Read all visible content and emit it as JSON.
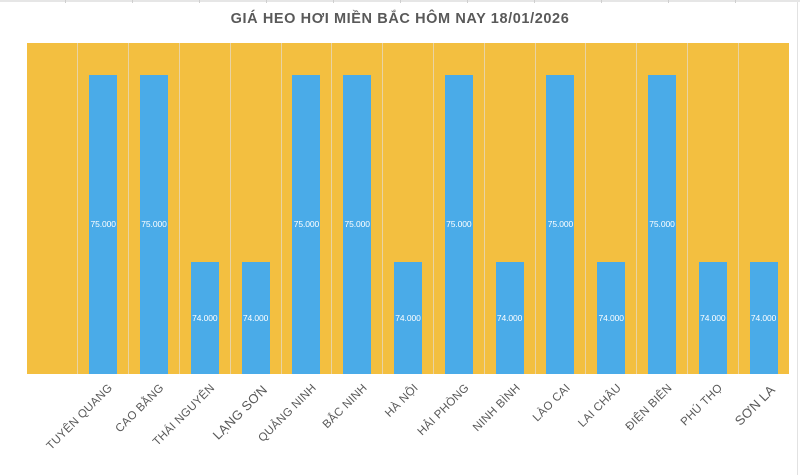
{
  "chart_data": {
    "type": "bar",
    "title": "GIÁ HEO HƠI MIỀN BẮC HÔM NAY 18/01/2026",
    "xlabel": "",
    "ylabel": "",
    "categories": [
      "",
      "TUYÊN QUANG",
      "CAO BẰNG",
      "THÁI NGUYÊN",
      "LẠNG SƠN",
      "QUẢNG NINH",
      "BẮC NINH",
      "HÀ NỘI",
      "HẢI PHÒNG",
      "NINH BÌNH",
      "LÀO CAI",
      "LAI CHÂU",
      "ĐIỆN BIÊN",
      "PHÚ THỌ",
      "SƠN LA"
    ],
    "values": [
      null,
      75000,
      75000,
      74000,
      74000,
      75000,
      75000,
      74000,
      75000,
      74000,
      75000,
      74000,
      75000,
      74000,
      74000
    ],
    "data_labels": [
      "",
      "75.000",
      "75.000",
      "74.000",
      "74.000",
      "75.000",
      "75.000",
      "74.000",
      "75.000",
      "74.000",
      "75.000",
      "74.000",
      "75.000",
      "74.000",
      "74.000"
    ],
    "ylim": [
      73400,
      75170
    ],
    "grid": false,
    "legend": null,
    "colors": {
      "bar": "#4AABE8",
      "plot_background": "#F3BF40",
      "category_separator": "#E9D3A3",
      "title": "#595959",
      "axis_label": "#595959",
      "data_label": "#FFFFFF"
    },
    "x_label_rotation": -45
  }
}
